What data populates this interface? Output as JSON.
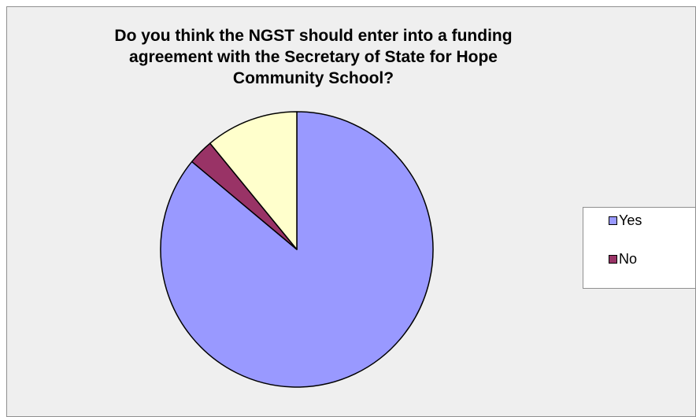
{
  "chart_data": {
    "type": "pie",
    "title": "Do you think the NGST should enter into a funding agreement with the Secretary of State for Hope Community School?",
    "categories": [
      "Yes",
      "No",
      ""
    ],
    "values": [
      86,
      3,
      11
    ],
    "colors": [
      "#9999ff",
      "#993366",
      "#ffffcc"
    ],
    "legend_position": "right"
  }
}
